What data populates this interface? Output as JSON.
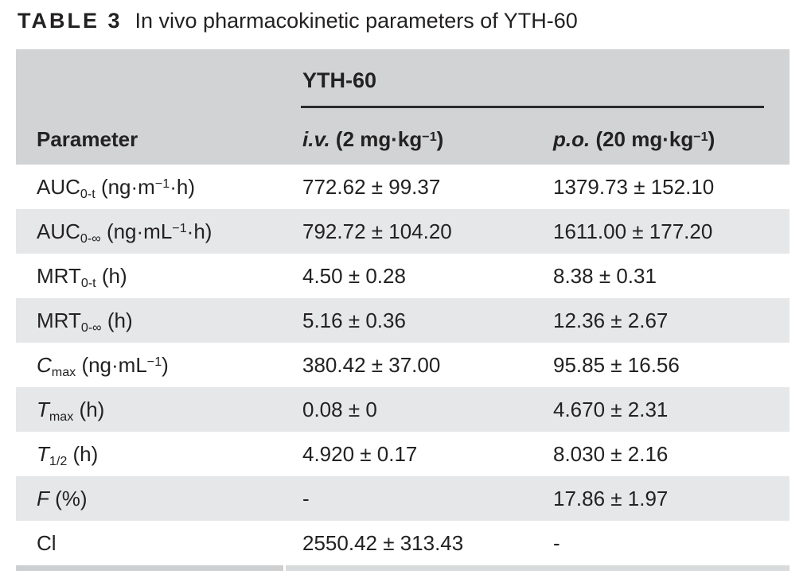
{
  "title": {
    "label": "TABLE 3",
    "text": "In vivo pharmacokinetic parameters of YTH-60"
  },
  "colors": {
    "page-bg": "#ffffff",
    "header-bg": "#d1d3d4",
    "stripe-bg": "#e6e7e8",
    "text": "#232122",
    "rule": "#2b2b2b",
    "bottom-left": "#cdcfd0",
    "bottom-right": "#d9dadb"
  },
  "table": {
    "group_header": "YTH-60",
    "columns": {
      "parameter": "Parameter",
      "iv": [
        {
          "t": "i.v.",
          "s": "i"
        },
        {
          "t": " (2 mg·kg"
        },
        {
          "t": "−1",
          "s": "sup"
        },
        {
          "t": ")"
        }
      ],
      "po": [
        {
          "t": "p.o.",
          "s": "i"
        },
        {
          "t": " (20 mg·kg"
        },
        {
          "t": "−1",
          "s": "sup"
        },
        {
          "t": ")"
        }
      ]
    },
    "rows": [
      {
        "param": [
          {
            "t": "AUC"
          },
          {
            "t": "0-t",
            "s": "sub"
          },
          {
            "t": " (ng·m"
          },
          {
            "t": "−1",
            "s": "sup"
          },
          {
            "t": "·h)"
          }
        ],
        "iv": "772.62 ± 99.37",
        "po": "1379.73 ± 152.10"
      },
      {
        "param": [
          {
            "t": "AUC"
          },
          {
            "t": "0-∞",
            "s": "sub"
          },
          {
            "t": " (ng·mL"
          },
          {
            "t": "−1",
            "s": "sup"
          },
          {
            "t": "·h)"
          }
        ],
        "iv": "792.72 ± 104.20",
        "po": "1611.00 ± 177.20"
      },
      {
        "param": [
          {
            "t": "MRT"
          },
          {
            "t": "0-t",
            "s": "sub"
          },
          {
            "t": " (h)"
          }
        ],
        "iv": "4.50 ± 0.28",
        "po": "8.38 ± 0.31"
      },
      {
        "param": [
          {
            "t": "MRT"
          },
          {
            "t": "0-∞",
            "s": "sub"
          },
          {
            "t": " (h)"
          }
        ],
        "iv": "5.16 ± 0.36",
        "po": "12.36 ± 2.67"
      },
      {
        "param": [
          {
            "t": "C",
            "s": "i"
          },
          {
            "t": "max",
            "s": "sub"
          },
          {
            "t": " (ng·mL"
          },
          {
            "t": "−1",
            "s": "sup"
          },
          {
            "t": ")"
          }
        ],
        "iv": "380.42 ± 37.00",
        "po": "95.85 ± 16.56"
      },
      {
        "param": [
          {
            "t": "T",
            "s": "i"
          },
          {
            "t": "max",
            "s": "sub"
          },
          {
            "t": " (h)"
          }
        ],
        "iv": "0.08 ± 0",
        "po": "4.670 ± 2.31"
      },
      {
        "param": [
          {
            "t": "T",
            "s": "i"
          },
          {
            "t": "1/2",
            "s": "sub"
          },
          {
            "t": " (h)"
          }
        ],
        "iv": "4.920 ± 0.17",
        "po": "8.030 ± 2.16"
      },
      {
        "param": [
          {
            "t": "F",
            "s": "i"
          },
          {
            "t": " (%)"
          }
        ],
        "iv": "-",
        "po": "17.86 ± 1.97"
      },
      {
        "param": [
          {
            "t": "Cl"
          }
        ],
        "iv": "2550.42 ± 313.43",
        "po": "-"
      }
    ]
  },
  "chart_data": {
    "type": "table",
    "title": "TABLE 3 In vivo pharmacokinetic parameters of YTH-60",
    "columns": [
      "Parameter",
      "YTH-60 i.v. (2 mg·kg−1)",
      "YTH-60 p.o. (20 mg·kg−1)"
    ],
    "rows": [
      [
        "AUC0-t (ng·m−1·h)",
        "772.62 ± 99.37",
        "1379.73 ± 152.10"
      ],
      [
        "AUC0-∞ (ng·mL−1·h)",
        "792.72 ± 104.20",
        "1611.00 ± 177.20"
      ],
      [
        "MRT0-t (h)",
        "4.50 ± 0.28",
        "8.38 ± 0.31"
      ],
      [
        "MRT0-∞ (h)",
        "5.16 ± 0.36",
        "12.36 ± 2.67"
      ],
      [
        "Cmax (ng·mL−1)",
        "380.42 ± 37.00",
        "95.85 ± 16.56"
      ],
      [
        "Tmax (h)",
        "0.08 ± 0",
        "4.670 ± 2.31"
      ],
      [
        "T1/2 (h)",
        "4.920 ± 0.17",
        "8.030 ± 2.16"
      ],
      [
        "F (%)",
        "-",
        "17.86 ± 1.97"
      ],
      [
        "Cl",
        "2550.42 ± 313.43",
        "-"
      ]
    ]
  }
}
